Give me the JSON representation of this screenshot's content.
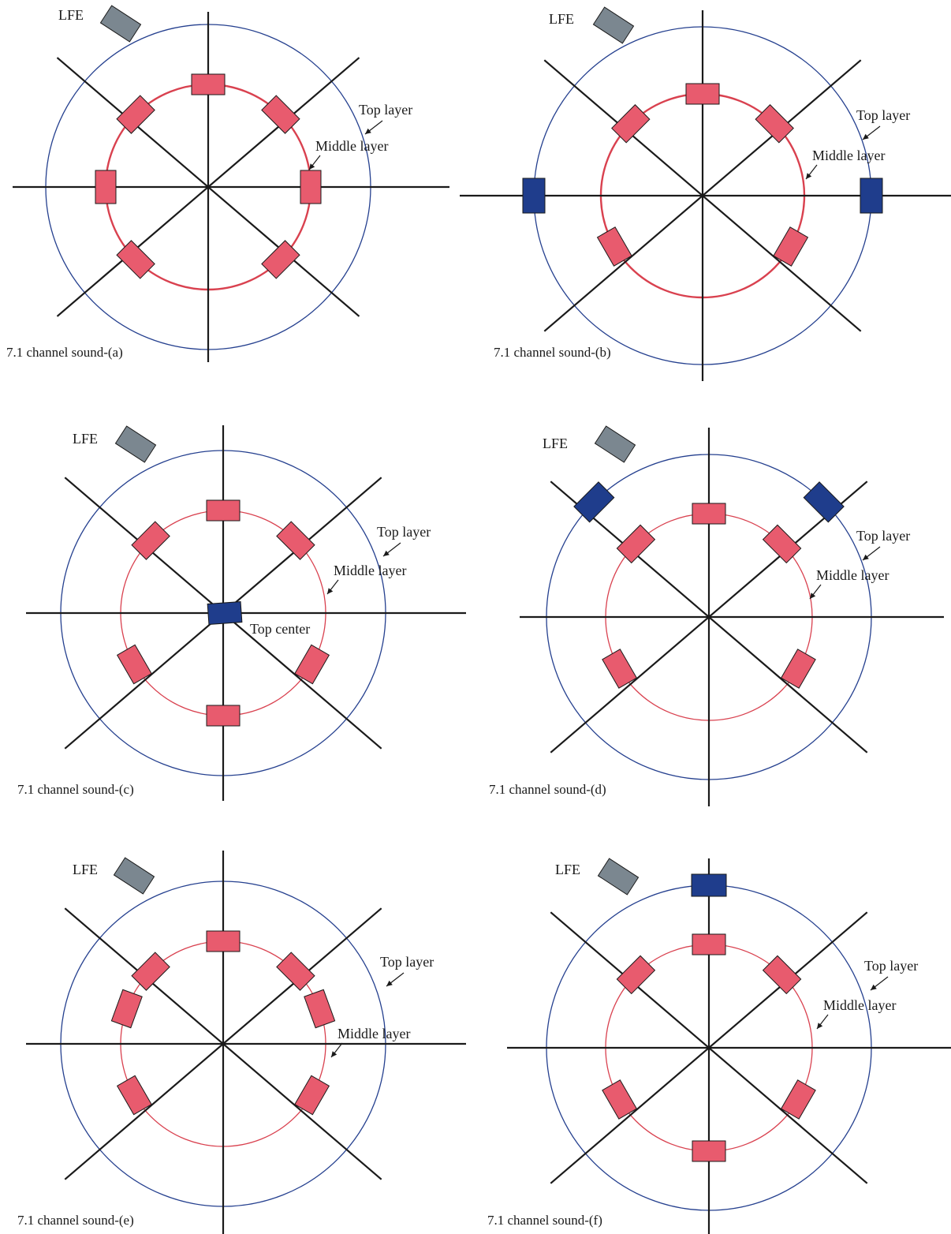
{
  "labels": {
    "lfe": "LFE",
    "top_layer": "Top layer",
    "middle_layer": "Middle layer",
    "top_center": "Top center"
  },
  "colors": {
    "middle_speaker": "#e85b6e",
    "top_speaker": "#1f3d8c",
    "lfe_speaker": "#7b8790",
    "middle_ring": "#d9414f",
    "top_ring": "#25408f",
    "axes": "#1a1a1a"
  },
  "panels": [
    {
      "id": "a",
      "caption": "7.1 channel sound-(a)",
      "middle_speakers_deg": [
        0,
        45,
        90,
        135,
        225,
        270,
        315
      ],
      "top_speakers_deg": [],
      "top_center": false
    },
    {
      "id": "b",
      "caption": "7.1 channel sound-(b)",
      "middle_speakers_deg": [
        0,
        45,
        120,
        240,
        315
      ],
      "top_speakers_deg": [
        90,
        270
      ],
      "top_center": false
    },
    {
      "id": "c",
      "caption": "7.1 channel sound-(c)",
      "middle_speakers_deg": [
        0,
        45,
        120,
        180,
        240,
        315
      ],
      "top_speakers_deg": [],
      "top_center": true
    },
    {
      "id": "d",
      "caption": "7.1 channel sound-(d)",
      "middle_speakers_deg": [
        0,
        45,
        120,
        240,
        315
      ],
      "top_speakers_deg": [
        45,
        315
      ],
      "top_center": false
    },
    {
      "id": "e",
      "caption": "7.1 channel sound-(e)",
      "middle_speakers_deg": [
        0,
        45,
        70,
        120,
        240,
        290,
        315
      ],
      "top_speakers_deg": [],
      "top_center": false
    },
    {
      "id": "f",
      "caption": "7.1 channel sound-(f)",
      "middle_speakers_deg": [
        0,
        45,
        120,
        180,
        240,
        315
      ],
      "top_speakers_deg": [
        0
      ],
      "top_center": false
    }
  ]
}
